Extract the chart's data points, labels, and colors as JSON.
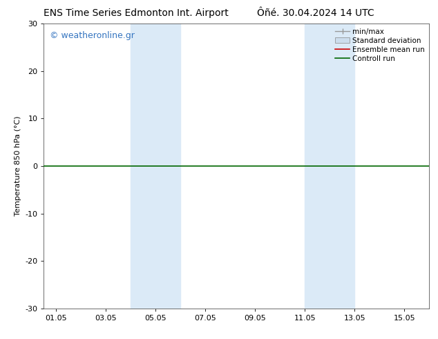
{
  "title_left": "ENS Time Series Edmonton Int. Airport",
  "title_right": "Ôñé. 30.04.2024 14 UTC",
  "ylabel": "Temperature 850 hPa (°C)",
  "ylim": [
    -30,
    30
  ],
  "yticks": [
    -30,
    -20,
    -10,
    0,
    10,
    20,
    30
  ],
  "xtick_labels": [
    "01.05",
    "03.05",
    "05.05",
    "07.05",
    "09.05",
    "11.05",
    "13.05",
    "15.05"
  ],
  "xtick_positions": [
    1,
    3,
    5,
    7,
    9,
    11,
    13,
    15
  ],
  "xlim": [
    0.5,
    16.0
  ],
  "shade_bands": [
    {
      "x_start": 4.0,
      "x_end": 6.0
    },
    {
      "x_start": 11.0,
      "x_end": 13.0
    }
  ],
  "shade_color": "#dbeaf7",
  "control_run_y": 0,
  "background_color": "#ffffff",
  "plot_bg_color": "#ffffff",
  "watermark_text": "© weatheronline.gr",
  "watermark_color": "#3575c0",
  "legend_entries": [
    {
      "label": "min/max",
      "color": "#999999",
      "style": "line_with_caps"
    },
    {
      "label": "Standard deviation",
      "color": "#ccdded",
      "style": "filled_box"
    },
    {
      "label": "Ensemble mean run",
      "color": "#cc0000",
      "style": "line"
    },
    {
      "label": "Controll run",
      "color": "#006600",
      "style": "line"
    }
  ],
  "font_size_title": 10,
  "font_size_axis": 8,
  "font_size_legend": 7.5,
  "font_size_watermark": 9,
  "control_run_color": "#006600",
  "control_run_lw": 1.2
}
